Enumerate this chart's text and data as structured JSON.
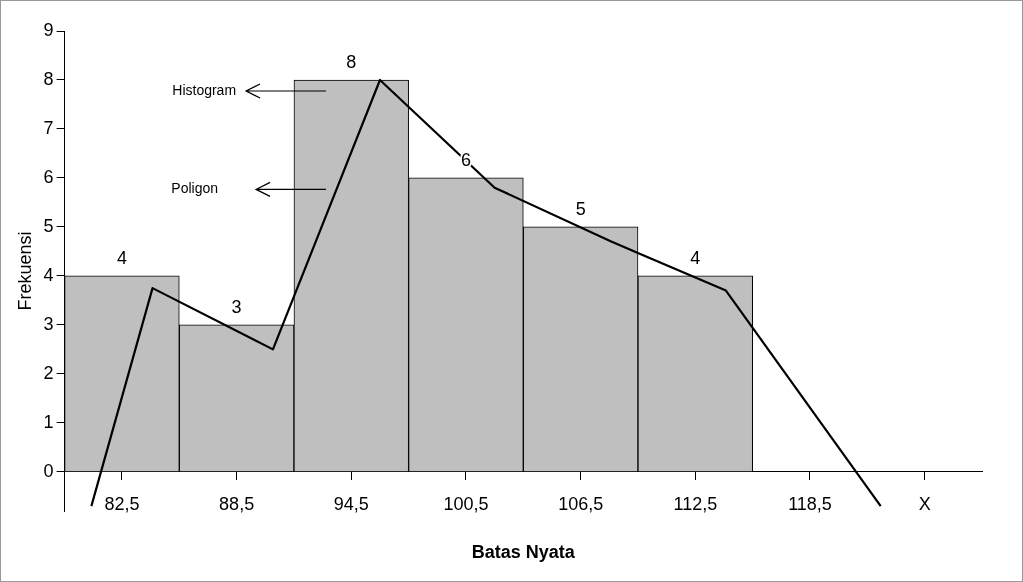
{
  "chart_data": {
    "type": "histogram",
    "xlabel": "Batas Nyata",
    "ylabel": "Frekuensi",
    "bins": [
      79.5,
      85.5,
      91.5,
      97.5,
      103.5,
      109.5,
      115.5
    ],
    "values": [
      4,
      3,
      8,
      6,
      5,
      4
    ],
    "color": "#bfbfbf",
    "value_labels": [
      "4",
      "3",
      "8",
      "6",
      "5",
      "4"
    ],
    "series": [
      {
        "type": "line",
        "color": "#000000",
        "x": [
          80.9,
          84.1,
          90.4,
          96.0,
          102.0,
          108.1,
          114.1,
          122.2
        ],
        "values": [
          -0.7,
          3.75,
          2.5,
          8.0,
          5.8,
          4.7,
          3.7,
          -0.7
        ]
      }
    ],
    "xlim": [
      79.5,
      127.5
    ],
    "xticks": [
      {
        "value": 82.5,
        "label": "82,5"
      },
      {
        "value": 88.5,
        "label": "88,5"
      },
      {
        "value": 94.5,
        "label": "94,5"
      },
      {
        "value": 100.5,
        "label": "100,5"
      },
      {
        "value": 106.5,
        "label": "106,5"
      },
      {
        "value": 112.5,
        "label": "112,5"
      },
      {
        "value": 118.5,
        "label": "118,5"
      },
      {
        "value": 124.5,
        "label": "X"
      }
    ],
    "ylim": [
      -0.8,
      9
    ],
    "yticks": [
      0,
      1,
      2,
      3,
      4,
      5,
      6,
      7,
      8,
      9
    ],
    "annotations": [
      "Histogram",
      "Poligon"
    ],
    "grid": false,
    "legend": false,
    "marker": "none",
    "line_style": "solid"
  }
}
